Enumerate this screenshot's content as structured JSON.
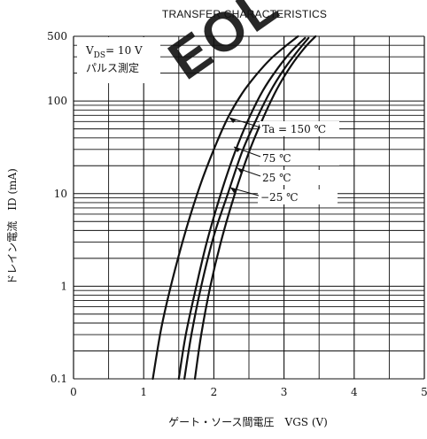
{
  "chart_data": {
    "type": "line",
    "title": "TRANSFER  CHARACTERISTICS",
    "xlabel": "ゲート・ソース間電圧　V_GS (V)",
    "ylabel": "ドレイン電流　I_D (mA)",
    "x_ticks": [
      "0",
      "1",
      "2",
      "3",
      "4",
      "5"
    ],
    "y_ticks": [
      "0.1",
      "1",
      "10",
      "100",
      "500"
    ],
    "xlim": [
      0,
      5
    ],
    "ylim": [
      0.1,
      500
    ],
    "y_scale": "log",
    "grid": true,
    "series": [
      {
        "name": "Ta = 150 ℃",
        "x": [
          1.13,
          1.25,
          1.4,
          1.6,
          1.8,
          2.0,
          2.2,
          2.4,
          2.6,
          2.8,
          3.0,
          3.2
        ],
        "values": [
          0.1,
          0.35,
          1.1,
          4.0,
          12.0,
          30.0,
          66.0,
          120.0,
          190.0,
          280.0,
          380.0,
          500.0
        ]
      },
      {
        "name": "75 ℃",
        "x": [
          1.5,
          1.6,
          1.75,
          1.9,
          2.1,
          2.3,
          2.5,
          2.7,
          2.9,
          3.1,
          3.3
        ],
        "values": [
          0.1,
          0.3,
          1.0,
          3.0,
          10.0,
          28.0,
          65.0,
          130.0,
          220.0,
          340.0,
          480.0
        ]
      },
      {
        "name": "25 ℃",
        "x": [
          1.58,
          1.68,
          1.82,
          2.0,
          2.2,
          2.4,
          2.6,
          2.8,
          3.0,
          3.2,
          3.35
        ],
        "values": [
          0.1,
          0.3,
          1.0,
          3.5,
          10.0,
          28.0,
          62.0,
          125.0,
          220.0,
          350.0,
          480.0
        ]
      },
      {
        "name": "−25 ℃",
        "x": [
          1.73,
          1.82,
          1.95,
          2.1,
          2.3,
          2.5,
          2.7,
          2.9,
          3.1,
          3.3,
          3.45
        ],
        "values": [
          0.1,
          0.3,
          1.0,
          3.0,
          10.0,
          28.0,
          65.0,
          135.0,
          240.0,
          380.0,
          500.0
        ]
      }
    ],
    "annotations": {
      "vds_label": "V",
      "vds_sub": "DS",
      "vds_value": "= 10 V",
      "pulse_label": "パルス測定",
      "watermark": "EOL"
    }
  }
}
